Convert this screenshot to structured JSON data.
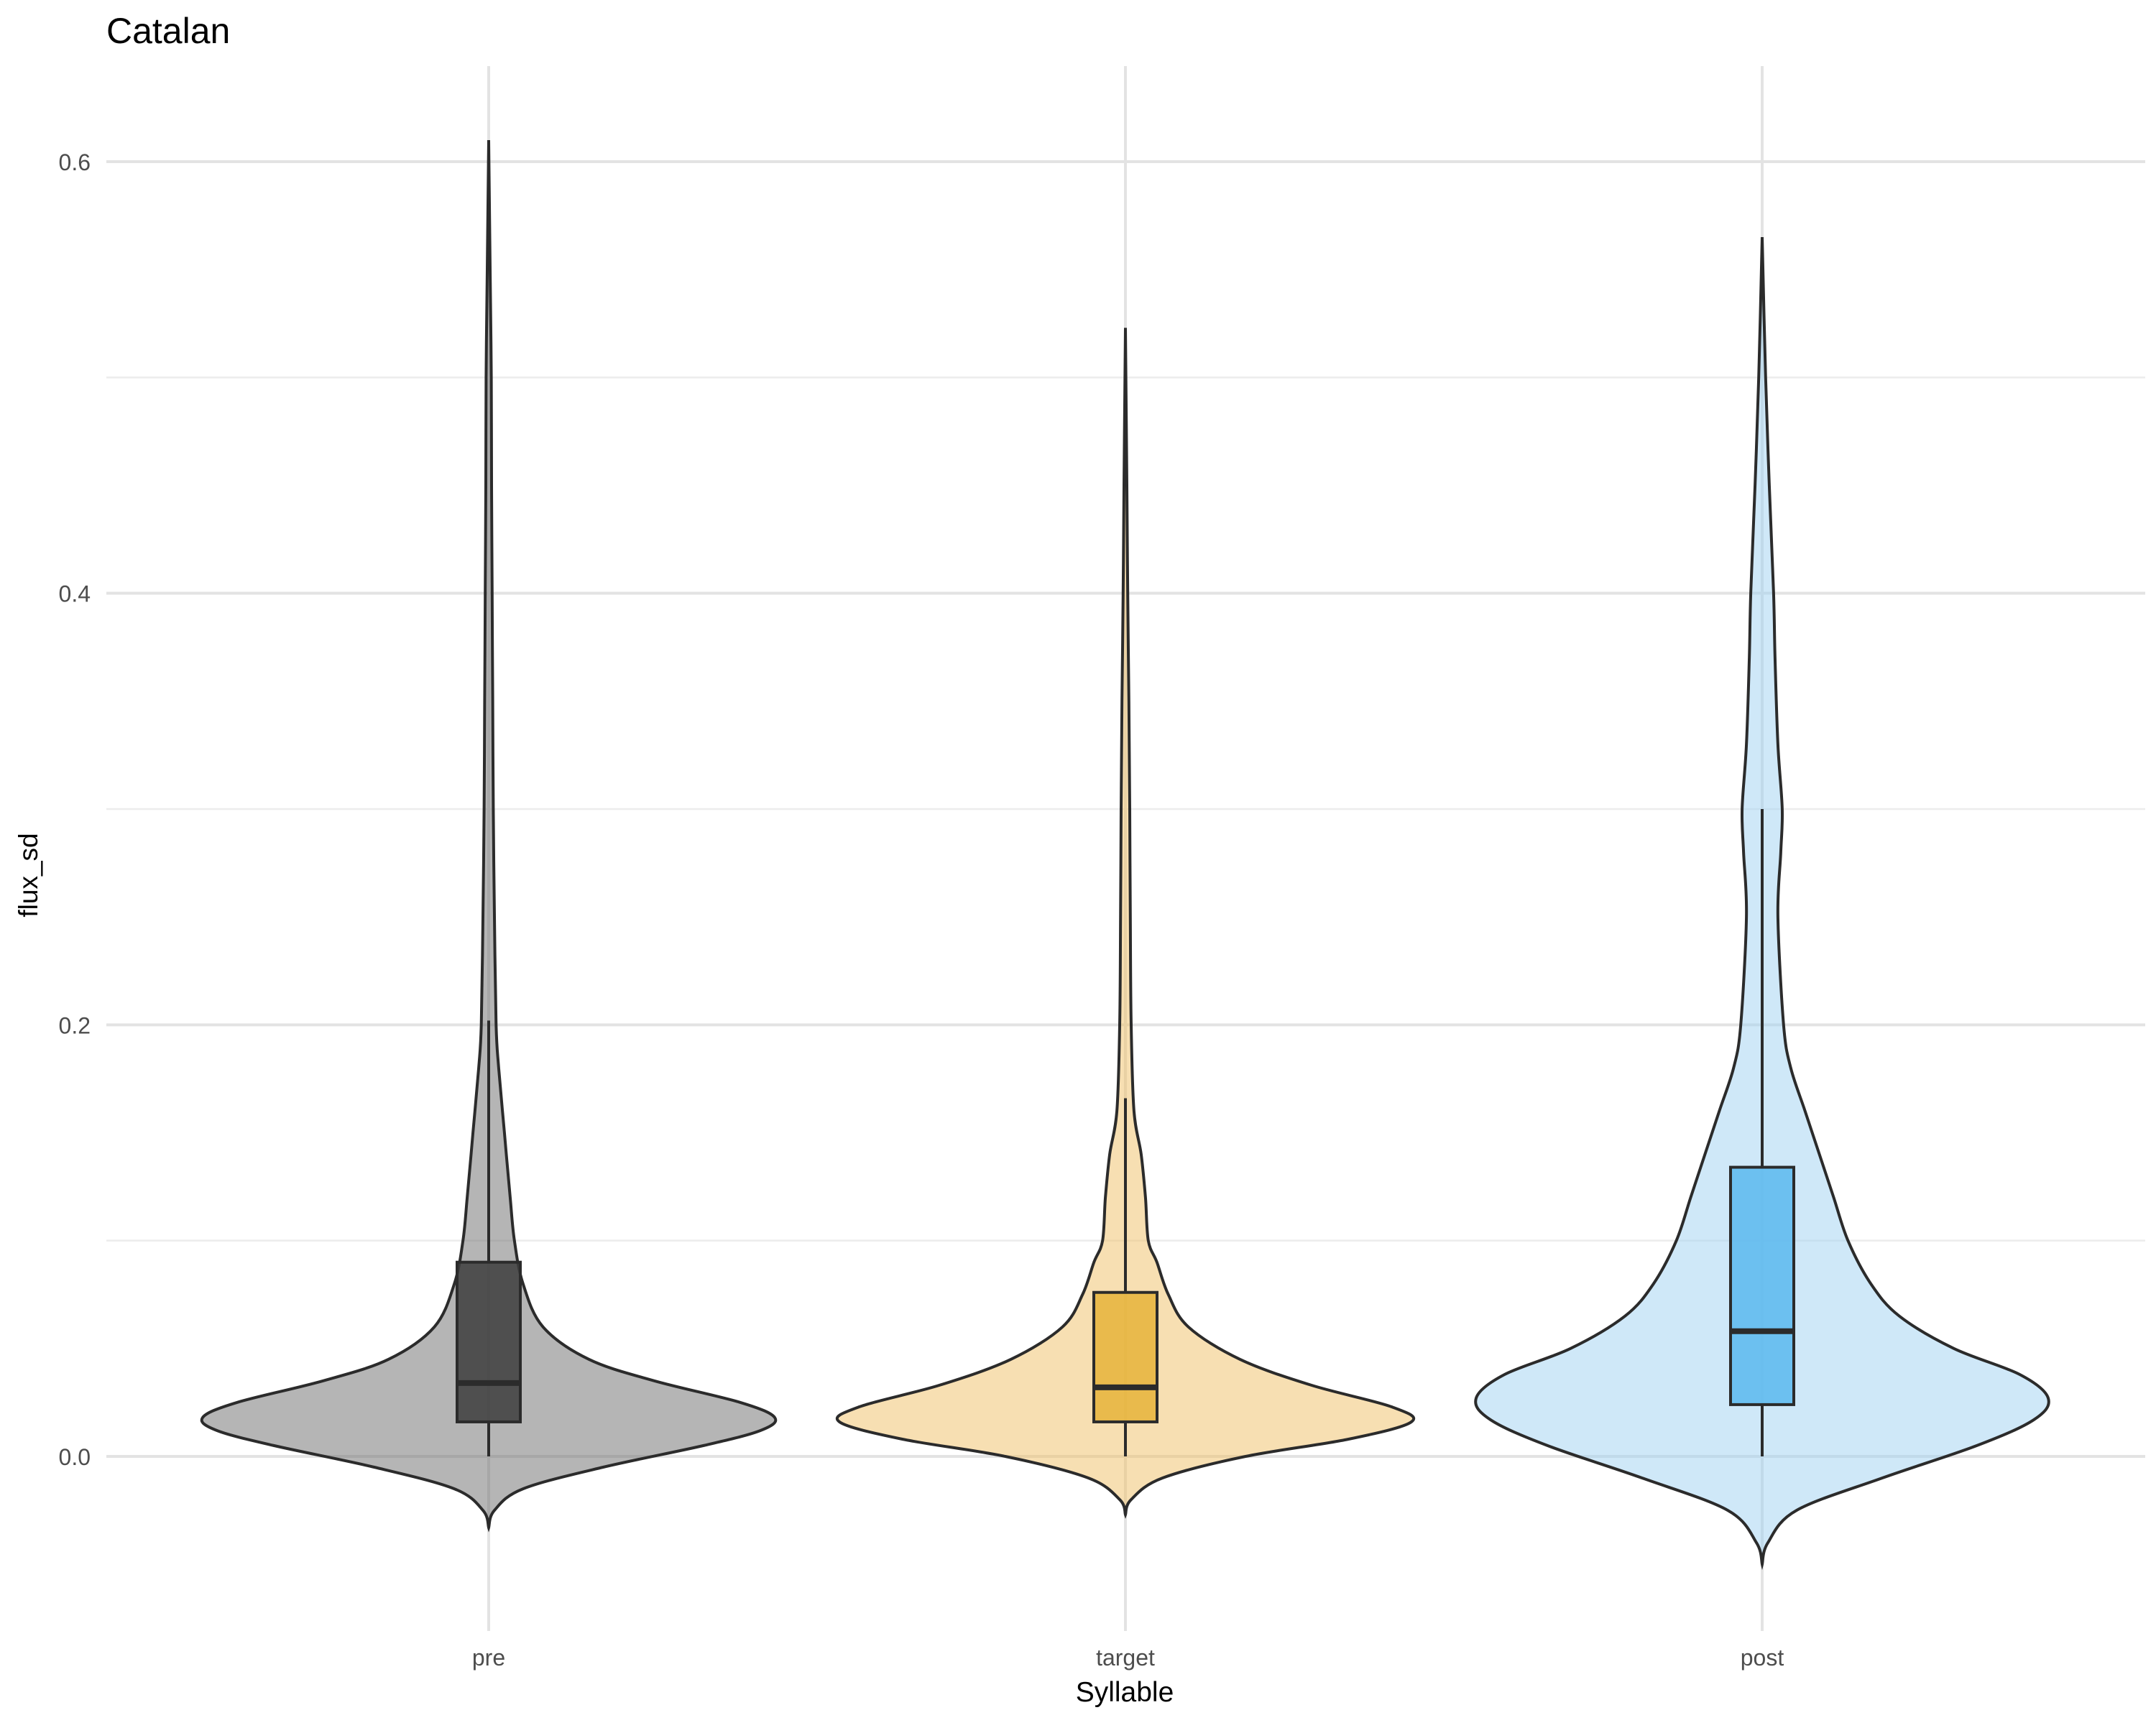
{
  "chart_data": {
    "type": "violin",
    "title": "Catalan",
    "xlabel": "Syllable",
    "ylabel": "flux_sd",
    "ylim": [
      -0.125,
      0.65
    ],
    "yticks": [
      0.0,
      0.2,
      0.4,
      0.6
    ],
    "ytick_labels": [
      "0.0",
      "0.2",
      "0.4",
      "0.6"
    ],
    "grid": true,
    "legend": "none",
    "categories": [
      "pre",
      "target",
      "post"
    ],
    "series": [
      {
        "category": "pre",
        "color": "#6b6b6b",
        "box_color": "#3d3d3d",
        "violin_range": [
          -0.033,
          0.61
        ],
        "box": {
          "whisker_low": 0.0,
          "q1": 0.016,
          "median": 0.034,
          "q3": 0.09,
          "whisker_high": 0.202
        },
        "density_profile": [
          [
            -0.033,
            0.0
          ],
          [
            -0.025,
            0.02
          ],
          [
            -0.015,
            0.12
          ],
          [
            -0.005,
            0.4
          ],
          [
            0.005,
            0.75
          ],
          [
            0.012,
            0.95
          ],
          [
            0.018,
            1.0
          ],
          [
            0.025,
            0.88
          ],
          [
            0.035,
            0.58
          ],
          [
            0.045,
            0.35
          ],
          [
            0.06,
            0.19
          ],
          [
            0.08,
            0.12
          ],
          [
            0.1,
            0.09
          ],
          [
            0.12,
            0.075
          ],
          [
            0.15,
            0.055
          ],
          [
            0.18,
            0.035
          ],
          [
            0.2,
            0.026
          ],
          [
            0.25,
            0.02
          ],
          [
            0.3,
            0.016
          ],
          [
            0.35,
            0.014
          ],
          [
            0.4,
            0.012
          ],
          [
            0.45,
            0.01
          ],
          [
            0.5,
            0.009
          ],
          [
            0.55,
            0.005
          ],
          [
            0.61,
            0.0
          ]
        ]
      },
      {
        "category": "target",
        "color": "#f0c065",
        "box_color": "#e6b43a",
        "violin_range": [
          -0.027,
          0.523
        ],
        "box": {
          "whisker_low": 0.0,
          "q1": 0.016,
          "median": 0.032,
          "q3": 0.076,
          "whisker_high": 0.166
        },
        "density_profile": [
          [
            -0.027,
            0.0
          ],
          [
            -0.02,
            0.02
          ],
          [
            -0.01,
            0.13
          ],
          [
            0.0,
            0.42
          ],
          [
            0.008,
            0.78
          ],
          [
            0.016,
            1.0
          ],
          [
            0.023,
            0.93
          ],
          [
            0.033,
            0.65
          ],
          [
            0.045,
            0.4
          ],
          [
            0.06,
            0.22
          ],
          [
            0.075,
            0.15
          ],
          [
            0.09,
            0.11
          ],
          [
            0.1,
            0.08
          ],
          [
            0.12,
            0.07
          ],
          [
            0.14,
            0.055
          ],
          [
            0.16,
            0.03
          ],
          [
            0.2,
            0.02
          ],
          [
            0.25,
            0.017
          ],
          [
            0.3,
            0.015
          ],
          [
            0.35,
            0.012
          ],
          [
            0.4,
            0.008
          ],
          [
            0.45,
            0.005
          ],
          [
            0.523,
            0.0
          ]
        ]
      },
      {
        "category": "post",
        "color": "#9fd2f2",
        "box_color": "#5bb8ee",
        "violin_range": [
          -0.05,
          0.565
        ],
        "box": {
          "whisker_low": 0.0,
          "q1": 0.024,
          "median": 0.058,
          "q3": 0.134,
          "whisker_high": 0.3
        },
        "density_profile": [
          [
            -0.05,
            0.0
          ],
          [
            -0.04,
            0.02
          ],
          [
            -0.025,
            0.12
          ],
          [
            -0.01,
            0.42
          ],
          [
            0.005,
            0.75
          ],
          [
            0.017,
            0.95
          ],
          [
            0.027,
            1.0
          ],
          [
            0.038,
            0.9
          ],
          [
            0.05,
            0.67
          ],
          [
            0.065,
            0.48
          ],
          [
            0.08,
            0.38
          ],
          [
            0.1,
            0.3
          ],
          [
            0.12,
            0.25
          ],
          [
            0.14,
            0.2
          ],
          [
            0.16,
            0.15
          ],
          [
            0.18,
            0.1
          ],
          [
            0.2,
            0.075
          ],
          [
            0.25,
            0.055
          ],
          [
            0.28,
            0.065
          ],
          [
            0.3,
            0.07
          ],
          [
            0.33,
            0.055
          ],
          [
            0.37,
            0.045
          ],
          [
            0.4,
            0.04
          ],
          [
            0.45,
            0.025
          ],
          [
            0.5,
            0.012
          ],
          [
            0.565,
            0.0
          ]
        ]
      }
    ]
  }
}
